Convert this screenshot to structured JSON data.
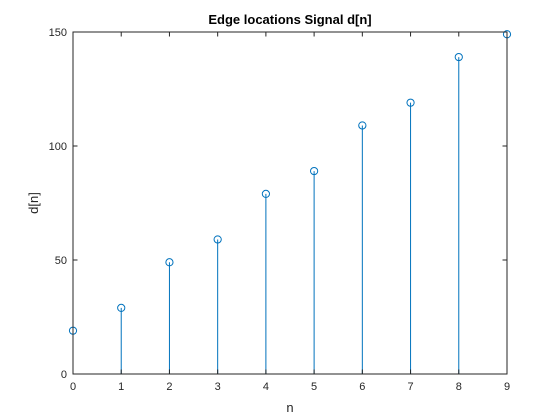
{
  "chart_data": {
    "type": "stem",
    "title": "Edge locations Signal d[n]",
    "xlabel": "n",
    "ylabel": "d[n]",
    "xlim": [
      0,
      9
    ],
    "ylim": [
      0,
      150
    ],
    "x_ticks": [
      0,
      1,
      2,
      3,
      4,
      5,
      6,
      7,
      8,
      9
    ],
    "y_ticks": [
      0,
      50,
      100,
      150
    ],
    "grid": false,
    "series": [
      {
        "x": [
          0,
          1,
          2,
          3,
          4,
          5,
          6,
          7,
          8,
          9
        ],
        "values": [
          19,
          29,
          49,
          59,
          79,
          89,
          109,
          119,
          139,
          149
        ]
      }
    ],
    "colors": {
      "stem": "#0072BD",
      "axes": "#262626",
      "background": "#ffffff"
    }
  }
}
